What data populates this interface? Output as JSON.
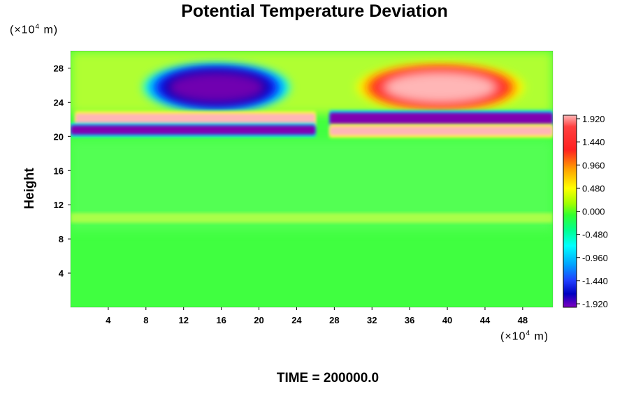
{
  "chart_data": {
    "type": "heatmap",
    "title": "Potential Temperature Deviation",
    "ylabel": "Height",
    "y_unit": "(×10",
    "y_unit_exp": "4",
    "y_unit_tail": " m)",
    "x_unit": "(×10",
    "x_unit_exp": "4",
    "x_unit_tail": " m)",
    "xlim": [
      0,
      51.2
    ],
    "ylim": [
      0,
      30
    ],
    "x_ticks": [
      "4",
      "8",
      "12",
      "16",
      "20",
      "24",
      "28",
      "32",
      "36",
      "40",
      "44",
      "48"
    ],
    "y_ticks": [
      "4",
      "8",
      "12",
      "16",
      "20",
      "24",
      "28"
    ],
    "colorbar_labels": [
      "1.920",
      "1.440",
      "0.960",
      "0.480",
      "0.000",
      "-0.480",
      "-0.960",
      "-1.440",
      "-1.920"
    ],
    "color_range": [
      -1.92,
      1.92
    ],
    "features": [
      {
        "kind": "cold",
        "x": [
          10.5,
          20.5
        ],
        "y": [
          24,
          27.5
        ],
        "value": -1.92
      },
      {
        "kind": "warm",
        "x": [
          33.5,
          45
        ],
        "y": [
          24,
          27.5
        ],
        "value": 1.92
      },
      {
        "kind": "warm",
        "x": [
          0.5,
          26
        ],
        "y": [
          21.3,
          22.7
        ],
        "value": 1.92
      },
      {
        "kind": "cold",
        "x": [
          0,
          26
        ],
        "y": [
          20.2,
          21.3
        ],
        "value": -1.92
      },
      {
        "kind": "cold",
        "x": [
          27.5,
          51.2
        ],
        "y": [
          21.3,
          22.8
        ],
        "value": -1.92
      },
      {
        "kind": "warm",
        "x": [
          27.5,
          51.2
        ],
        "y": [
          20.1,
          21.2
        ],
        "value": 1.92
      }
    ]
  },
  "footer": {
    "time_label": "TIME = 200000.0"
  }
}
